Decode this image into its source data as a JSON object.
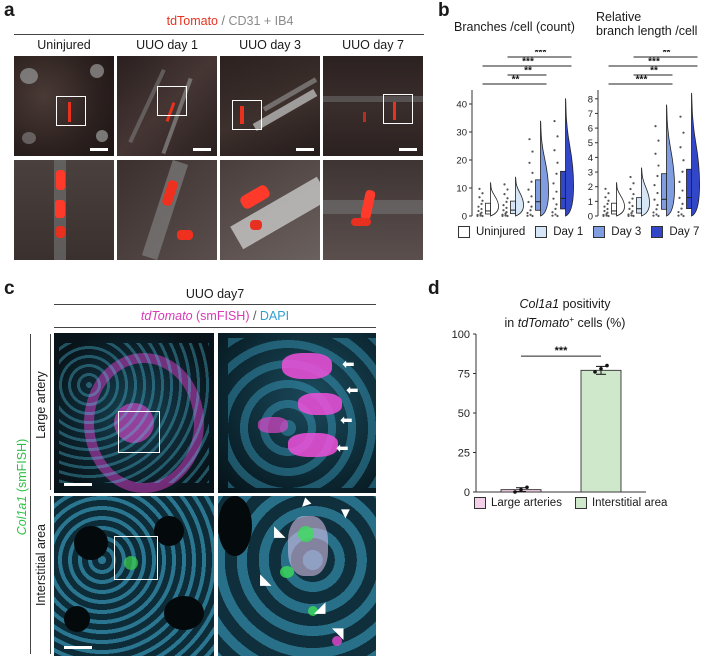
{
  "panel_a": {
    "label": "a",
    "title_part1": "tdTomato",
    "title_sep": " / ",
    "title_part2": "CD31 + IB4",
    "columns": [
      "Uninjured",
      "UUO day 1",
      "UUO day 3",
      "UUO day 7"
    ],
    "colors": {
      "tdtomato": "#e8321e",
      "cd31": "#9a9a9a"
    }
  },
  "panel_b": {
    "label": "b",
    "chart_data": [
      {
        "type": "violin",
        "title": "Branches /cell (count)",
        "yticks": [
          0,
          10,
          20,
          30,
          40
        ],
        "ylim": [
          0,
          45
        ],
        "groups": [
          "Uninjured",
          "Day 1",
          "Day 3",
          "Day 7"
        ],
        "group_colors": [
          "#ffffff",
          "#d6e6f7",
          "#7f9de0",
          "#3246c8"
        ],
        "max_values": [
          12,
          14,
          34,
          42
        ],
        "significance": [
          {
            "label": "**",
            "from": "Uninjured",
            "to": "Day 3"
          },
          {
            "label": "**",
            "from": "Day 1",
            "to": "Day 3"
          },
          {
            "label": "***",
            "from": "Uninjured",
            "to": "Day 7"
          },
          {
            "label": "***",
            "from": "Day 1",
            "to": "Day 7"
          }
        ]
      },
      {
        "type": "violin",
        "title_line1": "Relative",
        "title_line2": "branch length /cell",
        "yticks": [
          0,
          1,
          2,
          3,
          4,
          5,
          6,
          7,
          8
        ],
        "ylim": [
          0,
          8.6
        ],
        "groups": [
          "Uninjured",
          "Day 1",
          "Day 3",
          "Day 7"
        ],
        "group_colors": [
          "#ffffff",
          "#d6e6f7",
          "#7f9de0",
          "#3246c8"
        ],
        "max_values": [
          2.3,
          3.3,
          7.6,
          8.4
        ],
        "significance": [
          {
            "label": "***",
            "from": "Uninjured",
            "to": "Day 3"
          },
          {
            "label": "**",
            "from": "Day 1",
            "to": "Day 3"
          },
          {
            "label": "***",
            "from": "Uninjured",
            "to": "Day 7"
          },
          {
            "label": "**",
            "from": "Day 1",
            "to": "Day 7"
          }
        ]
      }
    ],
    "legend": [
      "Uninjured",
      "Day 1",
      "Day 3",
      "Day 7"
    ]
  },
  "panel_c": {
    "label": "c",
    "title": "UUO day7",
    "subtitle_part1": "tdTomato",
    "subtitle_part2": " (smFISH)",
    "subtitle_sep": " / ",
    "subtitle_part3": "DAPI",
    "side_part1": "Col1a1",
    "side_part2": " (smFISH)",
    "rows": [
      "Large artery",
      "Interstitial area"
    ],
    "colors": {
      "magenta": "#e23cc8",
      "cyan": "#3fb0d8",
      "green": "#38d050"
    }
  },
  "panel_d": {
    "label": "d",
    "chart_data": {
      "type": "bar",
      "title_part1": "Col1a1",
      "title_part2": " positivity",
      "title_line2_part1": "in ",
      "title_line2_part2": "tdTomato",
      "title_line2_sup": "+",
      "title_line2_part3": " cells (%)",
      "categories": [
        "Large arteries",
        "Interstitial area"
      ],
      "values": [
        1.5,
        77
      ],
      "errors": [
        1.2,
        2.5
      ],
      "points": [
        [
          0,
          1.5,
          3
        ],
        [
          76,
          78,
          80
        ]
      ],
      "bar_colors": [
        "#f3cfe8",
        "#cfe8cc"
      ],
      "yticks": [
        0,
        25,
        50,
        75,
        100
      ],
      "ylim": [
        0,
        100
      ],
      "significance": "***"
    }
  }
}
